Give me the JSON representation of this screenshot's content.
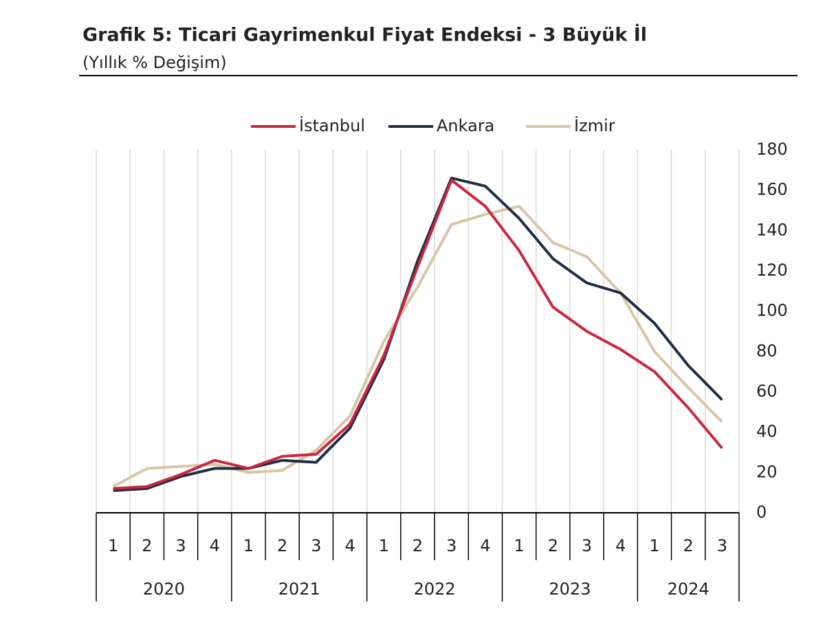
{
  "chart_data": {
    "type": "line",
    "title": "Grafik 5: Ticari Gayrimenkul Fiyat Endeksi - 3 Büyük İl",
    "subtitle": "(Yıllık % Değişim)",
    "categories": [
      "1",
      "2",
      "3",
      "4",
      "1",
      "2",
      "3",
      "4",
      "1",
      "2",
      "3",
      "4",
      "1",
      "2",
      "3",
      "4",
      "1",
      "2",
      "3"
    ],
    "years": [
      "2020",
      "2021",
      "2022",
      "2023",
      "2024"
    ],
    "series": [
      {
        "name": "İstanbul",
        "color": "#c8283f",
        "values": [
          12,
          13,
          19,
          26,
          22,
          28,
          29,
          44,
          78,
          122,
          165,
          152,
          130,
          102,
          90,
          81,
          70,
          52,
          32
        ]
      },
      {
        "name": "Ankara",
        "color": "#1f2d44",
        "values": [
          11,
          12,
          18,
          22,
          22,
          26,
          25,
          42,
          76,
          125,
          166,
          162,
          146,
          126,
          114,
          109,
          94,
          73,
          56
        ]
      },
      {
        "name": "İzmir",
        "color": "#d7c6a3",
        "values": [
          13,
          22,
          23,
          24,
          20,
          21,
          31,
          48,
          85,
          112,
          143,
          148,
          152,
          134,
          127,
          109,
          80,
          62,
          45
        ]
      }
    ],
    "ylim": [
      0,
      180
    ],
    "yticks": [
      0,
      20,
      40,
      60,
      80,
      100,
      120,
      140,
      160,
      180
    ],
    "grid": true,
    "legend": "top"
  }
}
